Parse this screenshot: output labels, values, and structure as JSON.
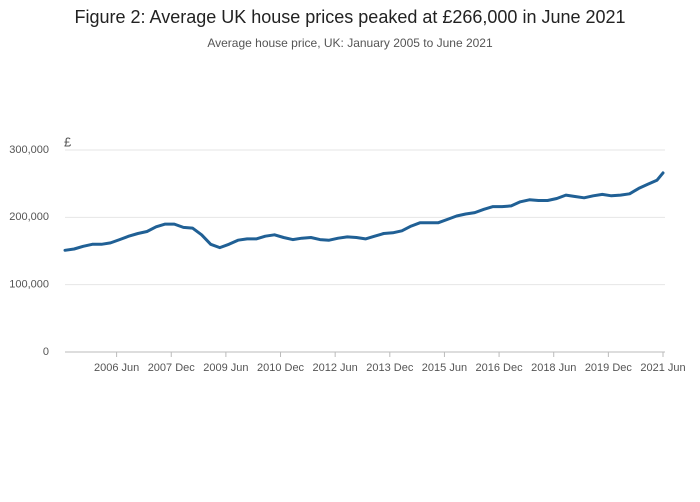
{
  "chart_data": {
    "type": "line",
    "title": "Figure 2: Average UK house prices peaked at £266,000 in June 2021",
    "subtitle": "Average house price, UK: January 2005 to June 2021",
    "ylabel": "£",
    "x": [
      "2005-01",
      "2005-04",
      "2005-07",
      "2005-10",
      "2006-01",
      "2006-04",
      "2006-07",
      "2006-10",
      "2007-01",
      "2007-04",
      "2007-07",
      "2007-10",
      "2008-01",
      "2008-04",
      "2008-07",
      "2008-10",
      "2009-01",
      "2009-04",
      "2009-07",
      "2009-10",
      "2010-01",
      "2010-04",
      "2010-07",
      "2010-10",
      "2011-01",
      "2011-04",
      "2011-07",
      "2011-10",
      "2012-01",
      "2012-04",
      "2012-07",
      "2012-10",
      "2013-01",
      "2013-04",
      "2013-07",
      "2013-10",
      "2014-01",
      "2014-04",
      "2014-07",
      "2014-10",
      "2015-01",
      "2015-04",
      "2015-07",
      "2015-10",
      "2016-01",
      "2016-04",
      "2016-07",
      "2016-10",
      "2017-01",
      "2017-04",
      "2017-07",
      "2017-10",
      "2018-01",
      "2018-04",
      "2018-07",
      "2018-10",
      "2019-01",
      "2019-04",
      "2019-07",
      "2019-10",
      "2020-01",
      "2020-04",
      "2020-07",
      "2020-10",
      "2021-01",
      "2021-04",
      "2021-06"
    ],
    "series": [
      {
        "name": "Average house price",
        "color": "#206095",
        "values": [
          151000,
          153000,
          157000,
          160000,
          160000,
          162000,
          167000,
          172000,
          176000,
          179000,
          186000,
          190000,
          190000,
          185000,
          184000,
          174000,
          160000,
          155000,
          160000,
          166000,
          168000,
          168000,
          172000,
          174000,
          170000,
          167000,
          169000,
          170000,
          167000,
          166000,
          169000,
          171000,
          170000,
          168000,
          172000,
          176000,
          177000,
          180000,
          187000,
          192000,
          192000,
          192000,
          197000,
          202000,
          205000,
          207000,
          212000,
          216000,
          216000,
          217000,
          223000,
          226000,
          225000,
          225000,
          228000,
          233000,
          231000,
          229000,
          232000,
          234000,
          232000,
          233000,
          235000,
          243000,
          249000,
          255000,
          266000
        ]
      }
    ],
    "xlim": [
      "2005-01",
      "2021-06"
    ],
    "xticks": [
      {
        "value": "2006-06",
        "label": "2006 Jun"
      },
      {
        "value": "2007-12",
        "label": "2007 Dec"
      },
      {
        "value": "2009-06",
        "label": "2009 Jun"
      },
      {
        "value": "2010-12",
        "label": "2010 Dec"
      },
      {
        "value": "2012-06",
        "label": "2012 Jun"
      },
      {
        "value": "2013-12",
        "label": "2013 Dec"
      },
      {
        "value": "2015-06",
        "label": "2015 Jun"
      },
      {
        "value": "2016-12",
        "label": "2016 Dec"
      },
      {
        "value": "2018-06",
        "label": "2018 Jun"
      },
      {
        "value": "2019-12",
        "label": "2019 Dec"
      },
      {
        "value": "2021-06",
        "label": "2021 Jun"
      }
    ],
    "ylim": [
      0,
      300000
    ],
    "yticks": [
      0,
      {
        "value": 100000,
        "label": "100,000"
      },
      {
        "value": 200000,
        "label": "200,000"
      },
      {
        "value": 300000,
        "label": "300,000"
      }
    ],
    "grid": true
  }
}
